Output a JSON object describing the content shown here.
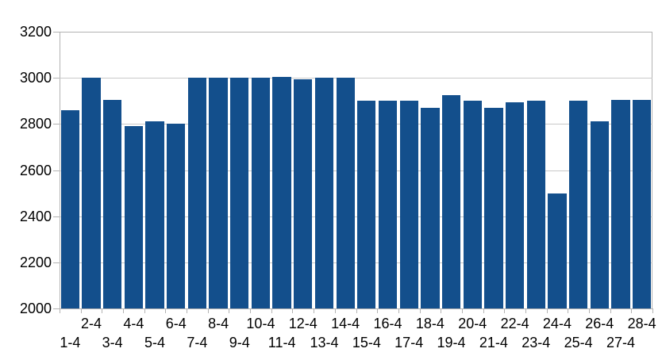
{
  "chart_data": {
    "type": "bar",
    "title": "",
    "xlabel": "",
    "ylabel": "",
    "categories": [
      "1-4",
      "2-4",
      "3-4",
      "4-4",
      "5-4",
      "6-4",
      "7-4",
      "8-4",
      "9-4",
      "10-4",
      "11-4",
      "12-4",
      "13-4",
      "14-4",
      "15-4",
      "16-4",
      "17-4",
      "18-4",
      "19-4",
      "20-4",
      "21-4",
      "22-4",
      "23-4",
      "24-4",
      "25-4",
      "26-4",
      "27-4",
      "28-4"
    ],
    "values": [
      2860,
      3000,
      2905,
      2790,
      2810,
      2800,
      3000,
      3000,
      3000,
      3000,
      3005,
      2995,
      3000,
      3000,
      2900,
      2900,
      2900,
      2870,
      2925,
      2900,
      2870,
      2895,
      2900,
      2500,
      2900,
      2810,
      2905,
      2905
    ],
    "y_ticks": [
      3200,
      3000,
      2800,
      2600,
      2400,
      2200,
      2000
    ],
    "ylim": [
      2000,
      3200
    ],
    "grid": true,
    "legend": false,
    "x_labels_staggered": true,
    "colors": {
      "bar": "#134f8c",
      "gridline": "#c9c9c9",
      "axis": "#b3b3b3",
      "text": "#000000",
      "background": "#ffffff"
    }
  }
}
